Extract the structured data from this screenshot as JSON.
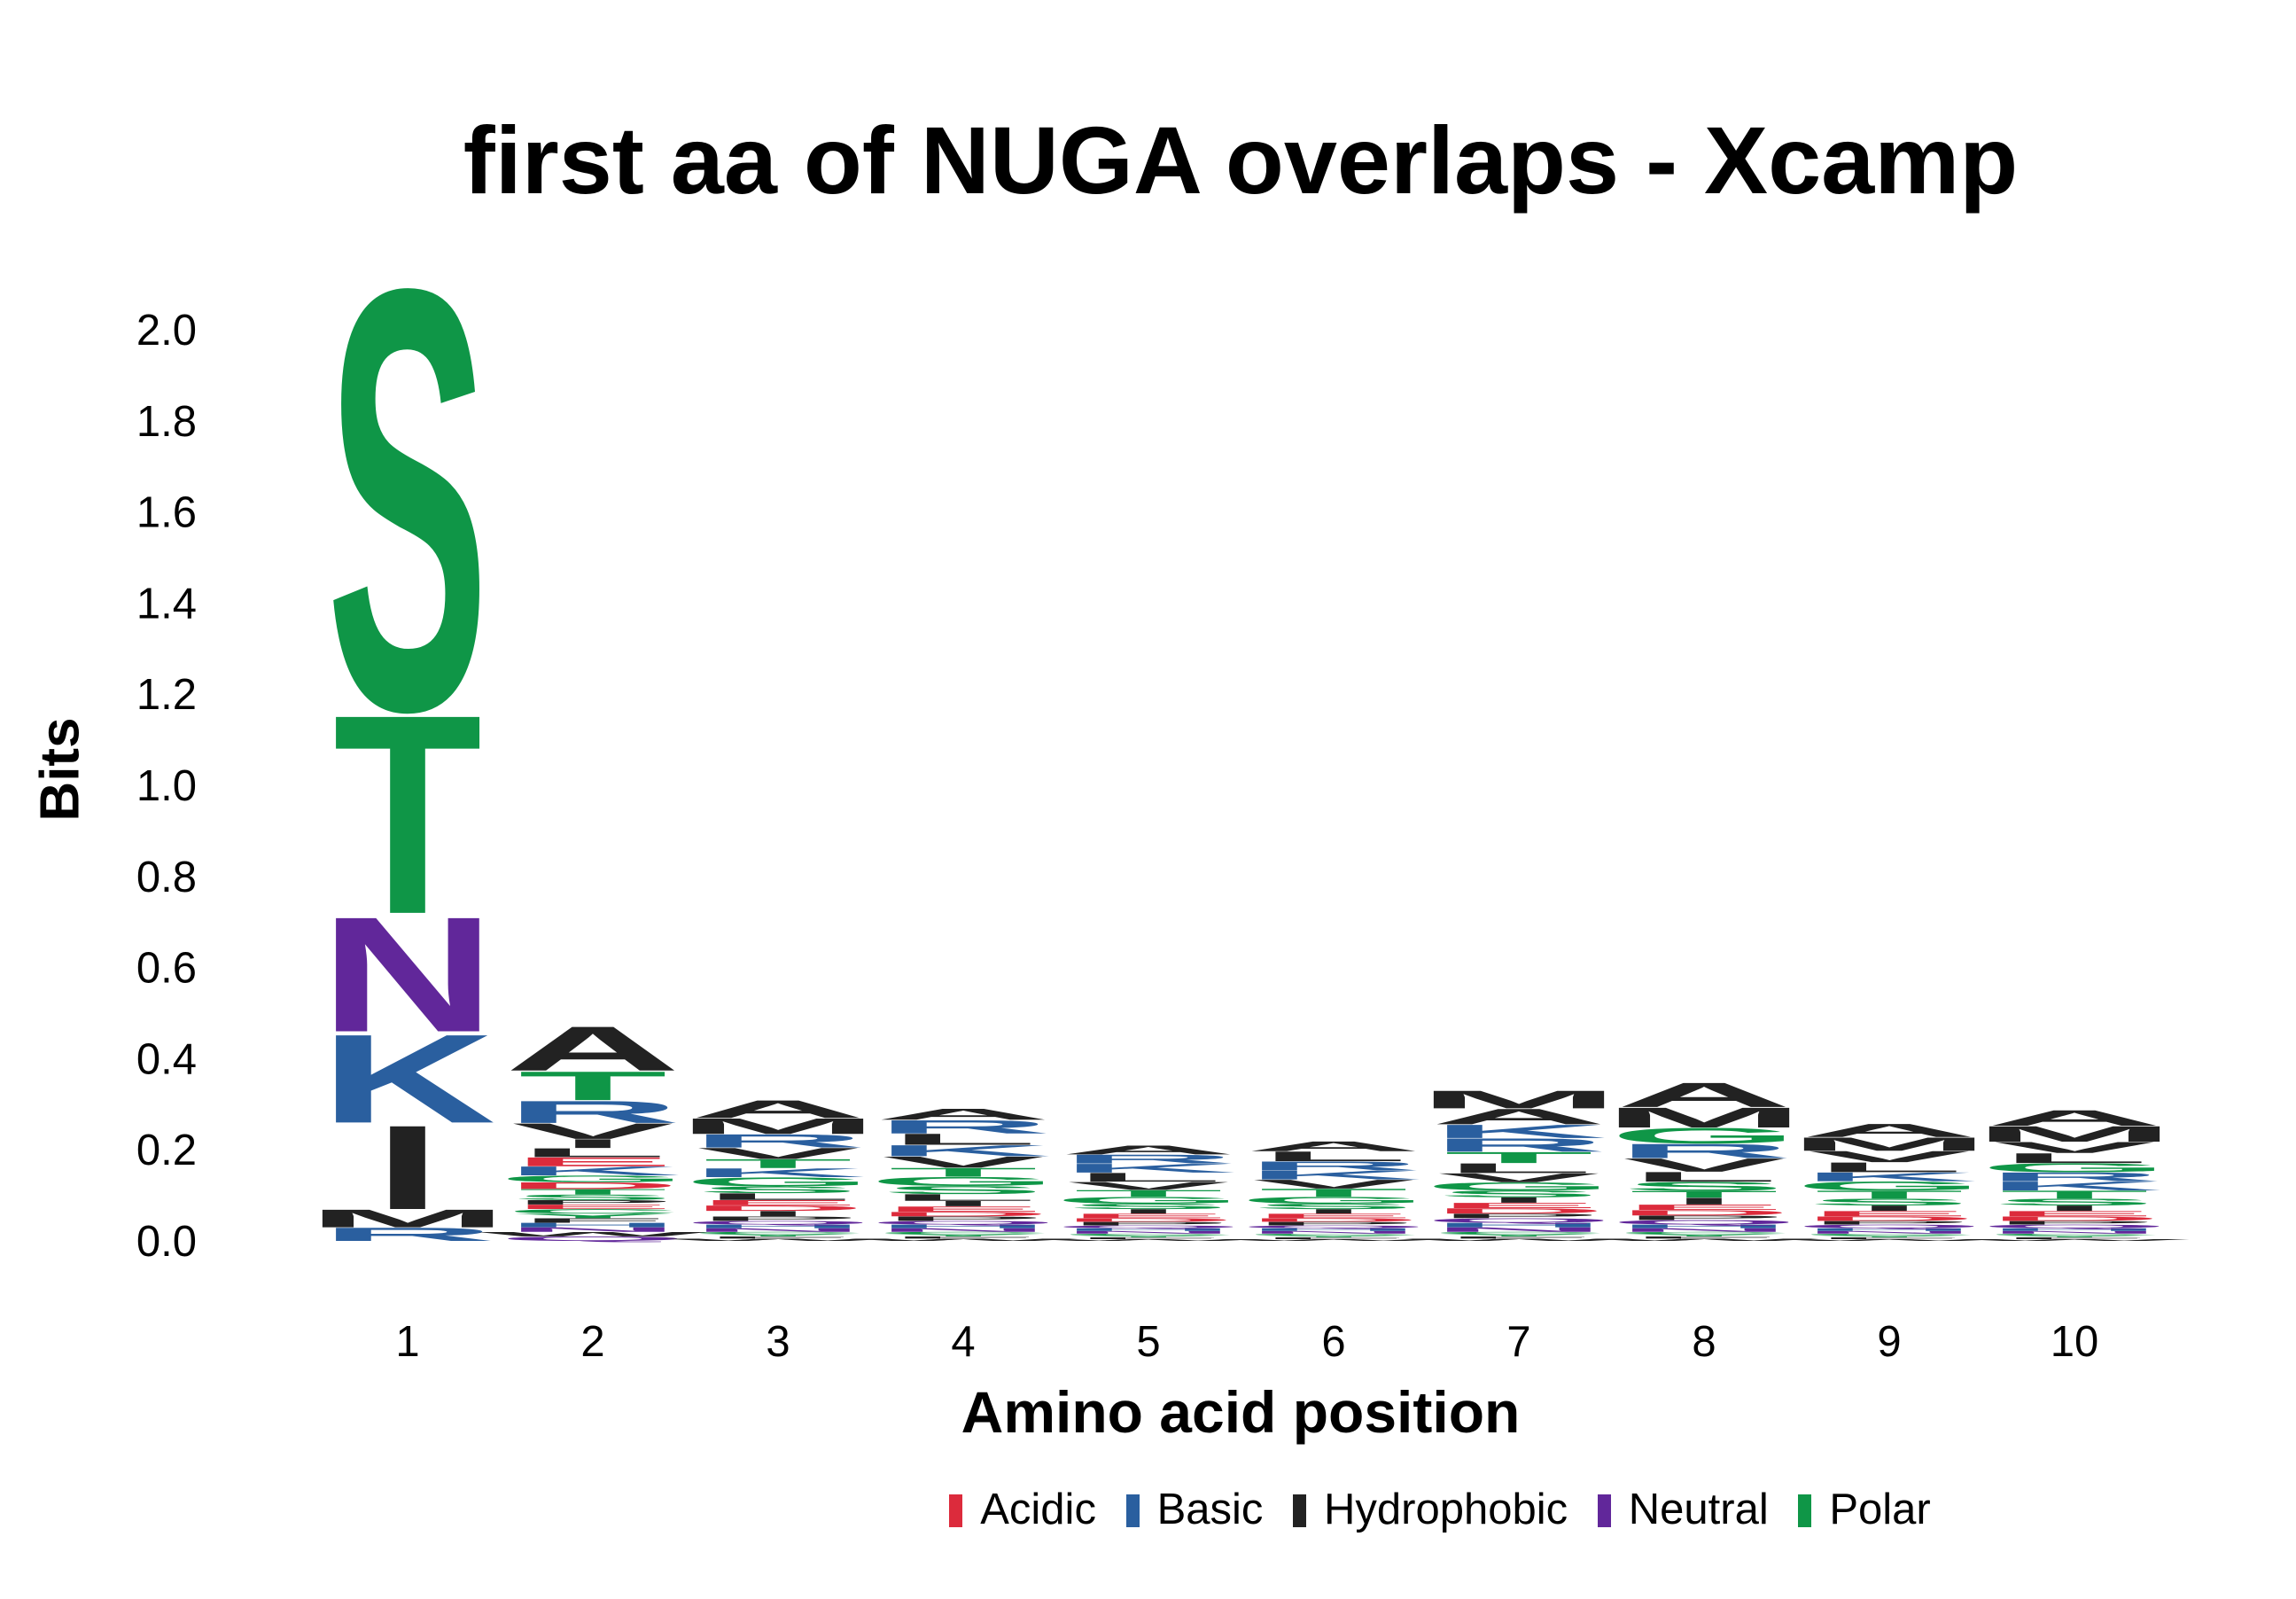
{
  "chart_data": {
    "type": "sequence-logo",
    "title": "first aa of NUGA overlaps - Xcamp",
    "xlabel": "Amino acid position",
    "ylabel": "Bits",
    "ylim": [
      0,
      2.05
    ],
    "yticks": [
      "0.0",
      "0.2",
      "0.4",
      "0.6",
      "0.8",
      "1.0",
      "1.2",
      "1.4",
      "1.6",
      "1.8",
      "2.0"
    ],
    "positions": [
      "1",
      "2",
      "3",
      "4",
      "5",
      "6",
      "7",
      "8",
      "9",
      "10"
    ],
    "colors": {
      "Acidic": "#dc2b3c",
      "Basic": "#2a5f9f",
      "Hydrophobic": "#222222",
      "Neutral": "#61279a",
      "Polar": "#0f9647"
    },
    "residue_class": {
      "D": "Acidic",
      "E": "Acidic",
      "K": "Basic",
      "R": "Basic",
      "H": "Basic",
      "A": "Hydrophobic",
      "V": "Hydrophobic",
      "L": "Hydrophobic",
      "I": "Hydrophobic",
      "P": "Hydrophobic",
      "W": "Hydrophobic",
      "F": "Hydrophobic",
      "M": "Hydrophobic",
      "Q": "Neutral",
      "N": "Neutral",
      "S": "Polar",
      "T": "Polar",
      "G": "Polar",
      "C": "Polar",
      "Y": "Polar"
    },
    "stacks": [
      [
        [
          "R",
          0.03
        ],
        [
          "M",
          0.04
        ],
        [
          "I",
          0.19
        ],
        [
          "K",
          0.2
        ],
        [
          "N",
          0.26
        ],
        [
          "T",
          0.45
        ],
        [
          "S",
          0.95
        ]
      ],
      [
        [
          "Q",
          0.01
        ],
        [
          "W",
          0.01
        ],
        [
          "N",
          0.01
        ],
        [
          "H",
          0.01
        ],
        [
          "F",
          0.01
        ],
        [
          "Y",
          0.01
        ],
        [
          "C",
          0.01
        ],
        [
          "E",
          0.01
        ],
        [
          "P",
          0.01
        ],
        [
          "S",
          0.012
        ],
        [
          "T",
          0.012
        ],
        [
          "D",
          0.015
        ],
        [
          "G",
          0.015
        ],
        [
          "K",
          0.02
        ],
        [
          "E",
          0.02
        ],
        [
          "L",
          0.02
        ],
        [
          "I",
          0.02
        ],
        [
          "V",
          0.035
        ],
        [
          "R",
          0.05
        ],
        [
          "T",
          0.065
        ],
        [
          "A",
          0.1
        ]
      ],
      [
        [
          "W",
          0.005
        ],
        [
          "F",
          0.005
        ],
        [
          "Y",
          0.005
        ],
        [
          "C",
          0.005
        ],
        [
          "N",
          0.008
        ],
        [
          "H",
          0.008
        ],
        [
          "Q",
          0.008
        ],
        [
          "P",
          0.01
        ],
        [
          "I",
          0.012
        ],
        [
          "D",
          0.012
        ],
        [
          "E",
          0.012
        ],
        [
          "L",
          0.015
        ],
        [
          "S",
          0.015
        ],
        [
          "G",
          0.02
        ],
        [
          "K",
          0.02
        ],
        [
          "T",
          0.02
        ],
        [
          "V",
          0.025
        ],
        [
          "R",
          0.03
        ],
        [
          "M",
          0.035
        ],
        [
          "A",
          0.04
        ]
      ],
      [
        [
          "W",
          0.005
        ],
        [
          "F",
          0.005
        ],
        [
          "Y",
          0.005
        ],
        [
          "C",
          0.005
        ],
        [
          "N",
          0.008
        ],
        [
          "H",
          0.008
        ],
        [
          "Q",
          0.008
        ],
        [
          "P",
          0.01
        ],
        [
          "D",
          0.01
        ],
        [
          "E",
          0.012
        ],
        [
          "I",
          0.012
        ],
        [
          "L",
          0.015
        ],
        [
          "S",
          0.018
        ],
        [
          "G",
          0.02
        ],
        [
          "T",
          0.02
        ],
        [
          "V",
          0.025
        ],
        [
          "K",
          0.025
        ],
        [
          "L",
          0.025
        ],
        [
          "R",
          0.03
        ],
        [
          "A",
          0.025
        ]
      ],
      [
        [
          "W",
          0.004
        ],
        [
          "F",
          0.004
        ],
        [
          "Y",
          0.004
        ],
        [
          "C",
          0.004
        ],
        [
          "N",
          0.006
        ],
        [
          "H",
          0.006
        ],
        [
          "Q",
          0.006
        ],
        [
          "P",
          0.008
        ],
        [
          "D",
          0.008
        ],
        [
          "E",
          0.01
        ],
        [
          "I",
          0.01
        ],
        [
          "S",
          0.012
        ],
        [
          "G",
          0.015
        ],
        [
          "T",
          0.015
        ],
        [
          "V",
          0.018
        ],
        [
          "L",
          0.02
        ],
        [
          "K",
          0.02
        ],
        [
          "R",
          0.02
        ],
        [
          "A",
          0.02
        ]
      ],
      [
        [
          "W",
          0.004
        ],
        [
          "F",
          0.004
        ],
        [
          "Y",
          0.004
        ],
        [
          "C",
          0.004
        ],
        [
          "N",
          0.006
        ],
        [
          "H",
          0.006
        ],
        [
          "Q",
          0.006
        ],
        [
          "P",
          0.008
        ],
        [
          "D",
          0.008
        ],
        [
          "E",
          0.01
        ],
        [
          "I",
          0.01
        ],
        [
          "S",
          0.012
        ],
        [
          "G",
          0.015
        ],
        [
          "T",
          0.018
        ],
        [
          "V",
          0.02
        ],
        [
          "K",
          0.02
        ],
        [
          "R",
          0.02
        ],
        [
          "L",
          0.022
        ],
        [
          "A",
          0.022
        ]
      ],
      [
        [
          "W",
          0.005
        ],
        [
          "F",
          0.005
        ],
        [
          "Y",
          0.005
        ],
        [
          "C",
          0.005
        ],
        [
          "N",
          0.01
        ],
        [
          "H",
          0.01
        ],
        [
          "Q",
          0.01
        ],
        [
          "P",
          0.01
        ],
        [
          "D",
          0.012
        ],
        [
          "E",
          0.012
        ],
        [
          "I",
          0.012
        ],
        [
          "S",
          0.015
        ],
        [
          "G",
          0.018
        ],
        [
          "V",
          0.02
        ],
        [
          "L",
          0.022
        ],
        [
          "T",
          0.025
        ],
        [
          "R",
          0.03
        ],
        [
          "K",
          0.03
        ],
        [
          "A",
          0.035
        ],
        [
          "M",
          0.04
        ]
      ],
      [
        [
          "W",
          0.005
        ],
        [
          "F",
          0.005
        ],
        [
          "Y",
          0.005
        ],
        [
          "C",
          0.005
        ],
        [
          "N",
          0.008
        ],
        [
          "H",
          0.008
        ],
        [
          "Q",
          0.01
        ],
        [
          "P",
          0.01
        ],
        [
          "D",
          0.012
        ],
        [
          "E",
          0.012
        ],
        [
          "I",
          0.015
        ],
        [
          "T",
          0.015
        ],
        [
          "S",
          0.02
        ],
        [
          "L",
          0.022
        ],
        [
          "V",
          0.03
        ],
        [
          "R",
          0.032
        ],
        [
          "G",
          0.035
        ],
        [
          "M",
          0.045
        ],
        [
          "A",
          0.055
        ]
      ],
      [
        [
          "W",
          0.004
        ],
        [
          "F",
          0.004
        ],
        [
          "Y",
          0.004
        ],
        [
          "C",
          0.004
        ],
        [
          "N",
          0.006
        ],
        [
          "H",
          0.006
        ],
        [
          "Q",
          0.008
        ],
        [
          "P",
          0.008
        ],
        [
          "D",
          0.01
        ],
        [
          "E",
          0.012
        ],
        [
          "I",
          0.012
        ],
        [
          "S",
          0.015
        ],
        [
          "T",
          0.018
        ],
        [
          "G",
          0.02
        ],
        [
          "K",
          0.02
        ],
        [
          "L",
          0.022
        ],
        [
          "V",
          0.025
        ],
        [
          "M",
          0.03
        ],
        [
          "A",
          0.03
        ]
      ],
      [
        [
          "W",
          0.004
        ],
        [
          "F",
          0.004
        ],
        [
          "Y",
          0.004
        ],
        [
          "C",
          0.004
        ],
        [
          "N",
          0.006
        ],
        [
          "H",
          0.006
        ],
        [
          "Q",
          0.008
        ],
        [
          "P",
          0.008
        ],
        [
          "D",
          0.01
        ],
        [
          "E",
          0.012
        ],
        [
          "I",
          0.012
        ],
        [
          "S",
          0.015
        ],
        [
          "T",
          0.018
        ],
        [
          "K",
          0.02
        ],
        [
          "R",
          0.02
        ],
        [
          "G",
          0.02
        ],
        [
          "L",
          0.022
        ],
        [
          "V",
          0.025
        ],
        [
          "M",
          0.035
        ],
        [
          "A",
          0.035
        ]
      ]
    ]
  },
  "legend": {
    "items": [
      {
        "label": "Acidic",
        "color": "#dc2b3c"
      },
      {
        "label": "Basic",
        "color": "#2a5f9f"
      },
      {
        "label": "Hydrophobic",
        "color": "#222222"
      },
      {
        "label": "Neutral",
        "color": "#61279a"
      },
      {
        "label": "Polar",
        "color": "#0f9647"
      }
    ]
  }
}
